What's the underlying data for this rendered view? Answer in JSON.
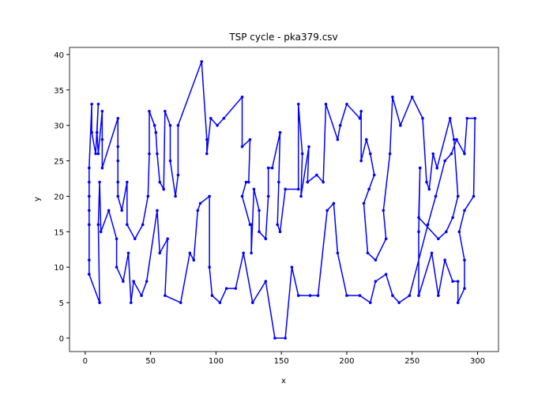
{
  "chart_data": {
    "type": "line",
    "title": "TSP cycle - pka379.csv",
    "x_label": "x",
    "y_label": "y",
    "x": [
      3,
      3,
      3,
      3,
      3,
      3,
      3,
      5,
      5,
      8,
      10,
      9,
      10,
      13,
      13,
      13,
      25,
      25,
      25,
      25,
      25,
      28,
      32,
      32,
      38,
      44,
      48,
      49,
      49,
      53,
      54,
      55,
      57,
      60,
      61,
      65,
      65,
      69,
      71,
      71,
      89,
      93,
      93,
      96,
      101,
      106,
      120,
      120,
      126,
      125,
      123,
      120,
      126,
      127,
      127,
      129,
      133,
      133,
      138,
      140,
      140,
      143,
      149,
      148,
      147,
      149,
      153,
      163,
      163,
      166,
      165,
      171,
      170,
      177,
      182,
      184,
      193,
      195,
      200,
      210,
      211,
      211,
      215,
      218,
      221,
      217,
      213,
      216,
      222,
      230,
      228,
      233,
      235,
      241,
      250,
      258,
      261,
      263,
      266,
      269,
      279,
      282,
      285,
      281,
      276,
      270,
      255,
      256,
      255,
      255,
      265,
      270,
      275,
      281,
      285,
      285,
      290,
      290,
      286,
      290,
      297,
      298,
      292,
      290,
      284,
      280,
      275,
      268,
      262,
      248,
      240,
      235,
      230,
      222,
      218,
      210,
      200,
      193,
      190,
      185,
      178,
      172,
      163,
      158,
      153,
      145,
      138,
      128,
      121,
      115,
      108,
      103,
      97,
      95,
      95,
      88,
      86,
      83,
      80,
      73,
      61,
      63,
      57,
      55,
      47,
      43,
      37,
      35,
      33,
      29,
      24,
      24,
      18,
      12,
      11,
      10,
      11,
      3
    ],
    "series": [
      {
        "color": "#0000ff",
        "values": [
          9,
          11,
          16,
          18,
          20,
          22,
          24,
          33,
          29,
          26,
          33,
          29,
          26,
          32,
          28,
          24,
          31,
          27,
          25,
          22,
          20,
          18,
          22,
          16,
          14,
          16,
          20,
          26,
          32,
          30,
          29,
          26,
          22,
          21,
          32,
          30,
          25,
          20,
          23,
          30,
          39,
          28,
          26,
          31,
          30,
          31,
          34,
          27,
          28,
          22,
          22,
          20,
          16,
          16,
          12,
          21,
          18,
          15,
          14,
          20,
          24,
          24,
          29,
          22,
          16,
          15,
          21,
          21,
          33,
          26,
          20,
          27,
          22,
          23,
          22,
          33,
          28,
          30,
          33,
          31,
          32,
          25,
          28,
          26,
          23,
          21,
          19,
          12,
          11,
          14,
          18,
          26,
          34,
          30,
          34,
          31,
          22,
          21,
          26,
          24,
          31,
          28,
          20,
          17,
          15,
          14,
          17,
          24,
          15,
          6,
          12,
          6,
          11,
          8,
          8,
          5,
          7,
          11,
          15,
          18,
          20,
          31,
          31,
          26,
          28,
          26,
          25,
          20,
          16,
          6,
          5,
          6,
          9,
          8,
          5,
          6,
          6,
          12,
          19,
          18,
          6,
          6,
          6,
          10,
          0,
          0,
          8,
          5,
          12,
          7,
          7,
          5,
          6,
          10,
          20,
          19,
          18,
          11,
          12,
          5,
          6,
          14,
          12,
          18,
          8,
          6,
          8,
          5,
          12,
          8,
          10,
          14,
          18,
          15,
          22,
          16,
          5,
          9
        ]
      }
    ],
    "xlim": [
      -12,
      316
    ],
    "ylim": [
      -1.9,
      41
    ],
    "xticks": [
      0,
      50,
      100,
      150,
      200,
      250,
      300
    ],
    "yticks": [
      0,
      5,
      10,
      15,
      20,
      25,
      30,
      35,
      40
    ]
  }
}
